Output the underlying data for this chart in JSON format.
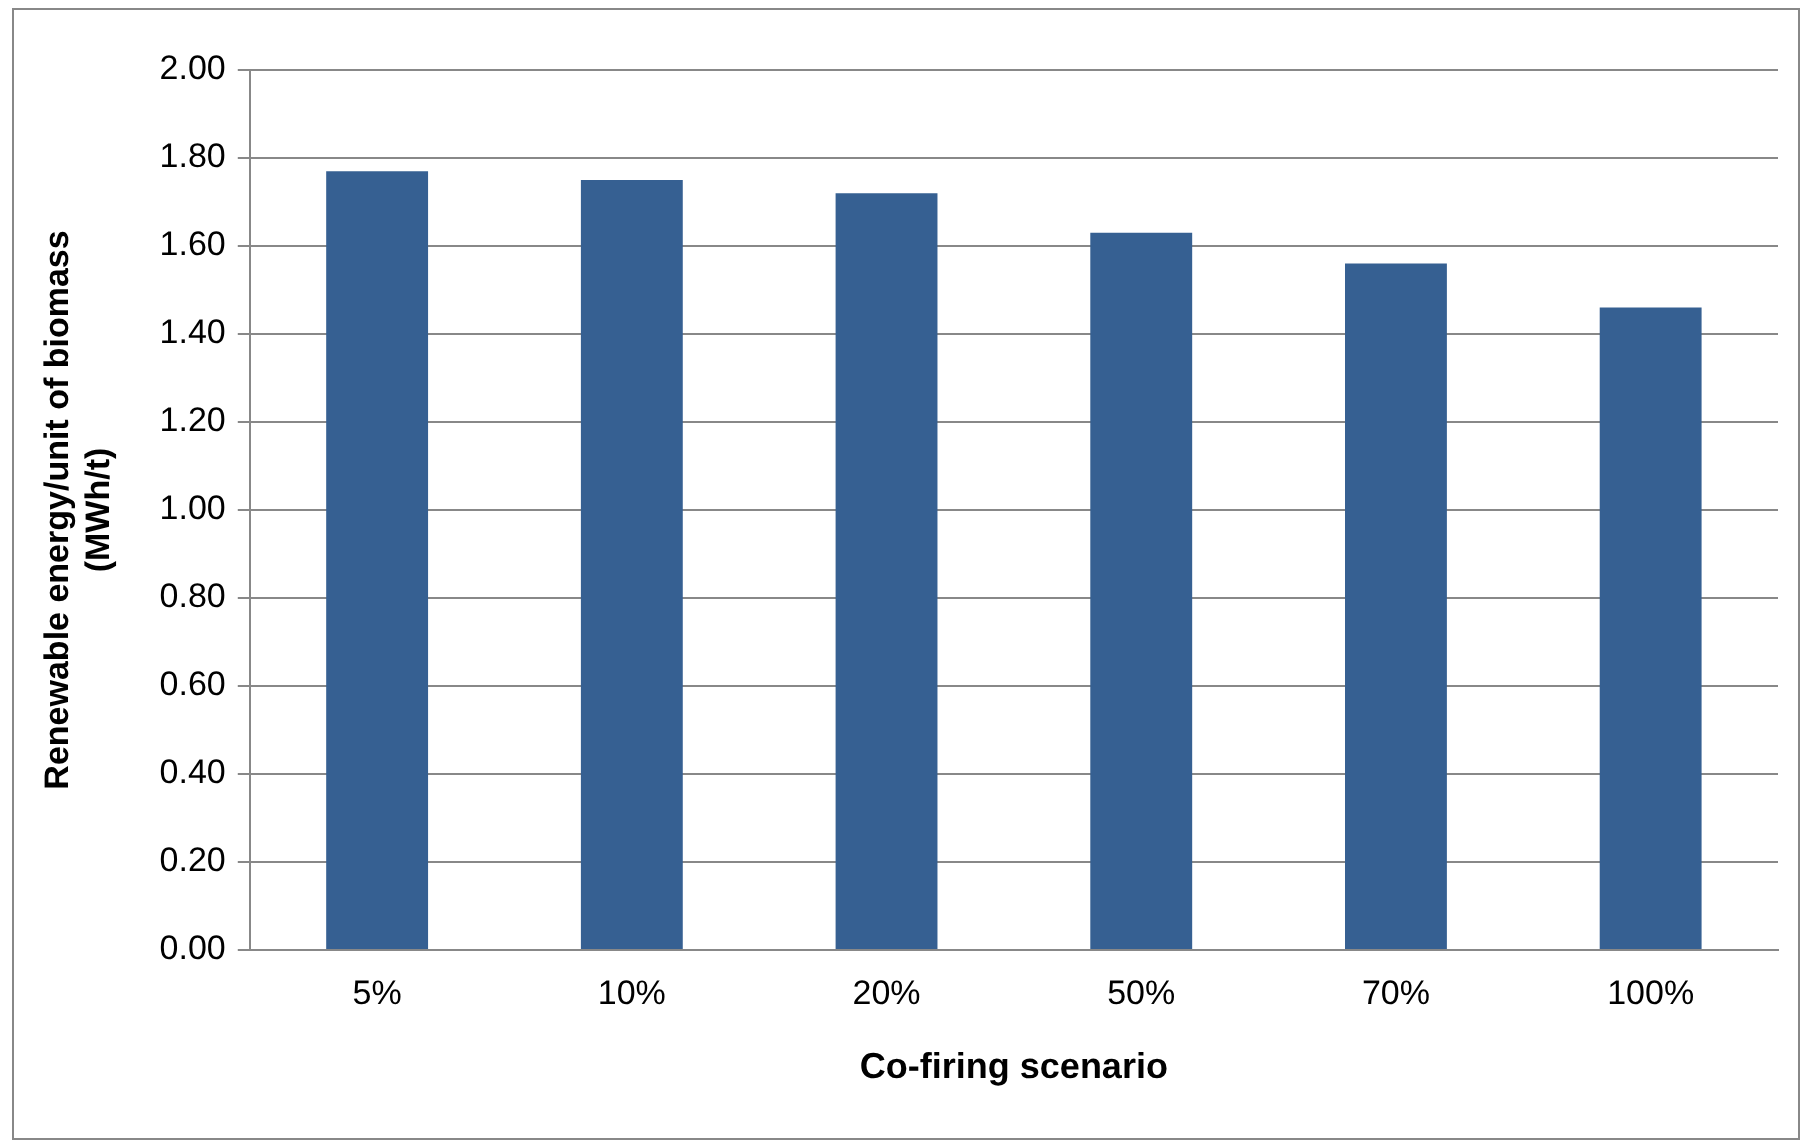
{
  "chart_data": {
    "type": "bar",
    "xlabel": "Co-firing scenario",
    "ylabel": "Renewable energy/unit of biomass (MWh/t)",
    "categories": [
      "5%",
      "10%",
      "20%",
      "50%",
      "70%",
      "100%"
    ],
    "values": [
      1.77,
      1.75,
      1.72,
      1.63,
      1.56,
      1.46
    ],
    "color": "#366092",
    "ylim": [
      0,
      2
    ],
    "yticks": [
      {
        "value": 0,
        "label": "0.00"
      },
      {
        "value": 0.2,
        "label": "0.20"
      },
      {
        "value": 0.4,
        "label": "0.40"
      },
      {
        "value": 0.6,
        "label": "0.60"
      },
      {
        "value": 0.8,
        "label": "0.80"
      },
      {
        "value": 1,
        "label": "1.00"
      },
      {
        "value": 1.2,
        "label": "1.20"
      },
      {
        "value": 1.4,
        "label": "1.40"
      },
      {
        "value": 1.6,
        "label": "1.60"
      },
      {
        "value": 1.8,
        "label": "1.80"
      },
      {
        "value": 2,
        "label": "2.00"
      }
    ],
    "grid": "y"
  }
}
